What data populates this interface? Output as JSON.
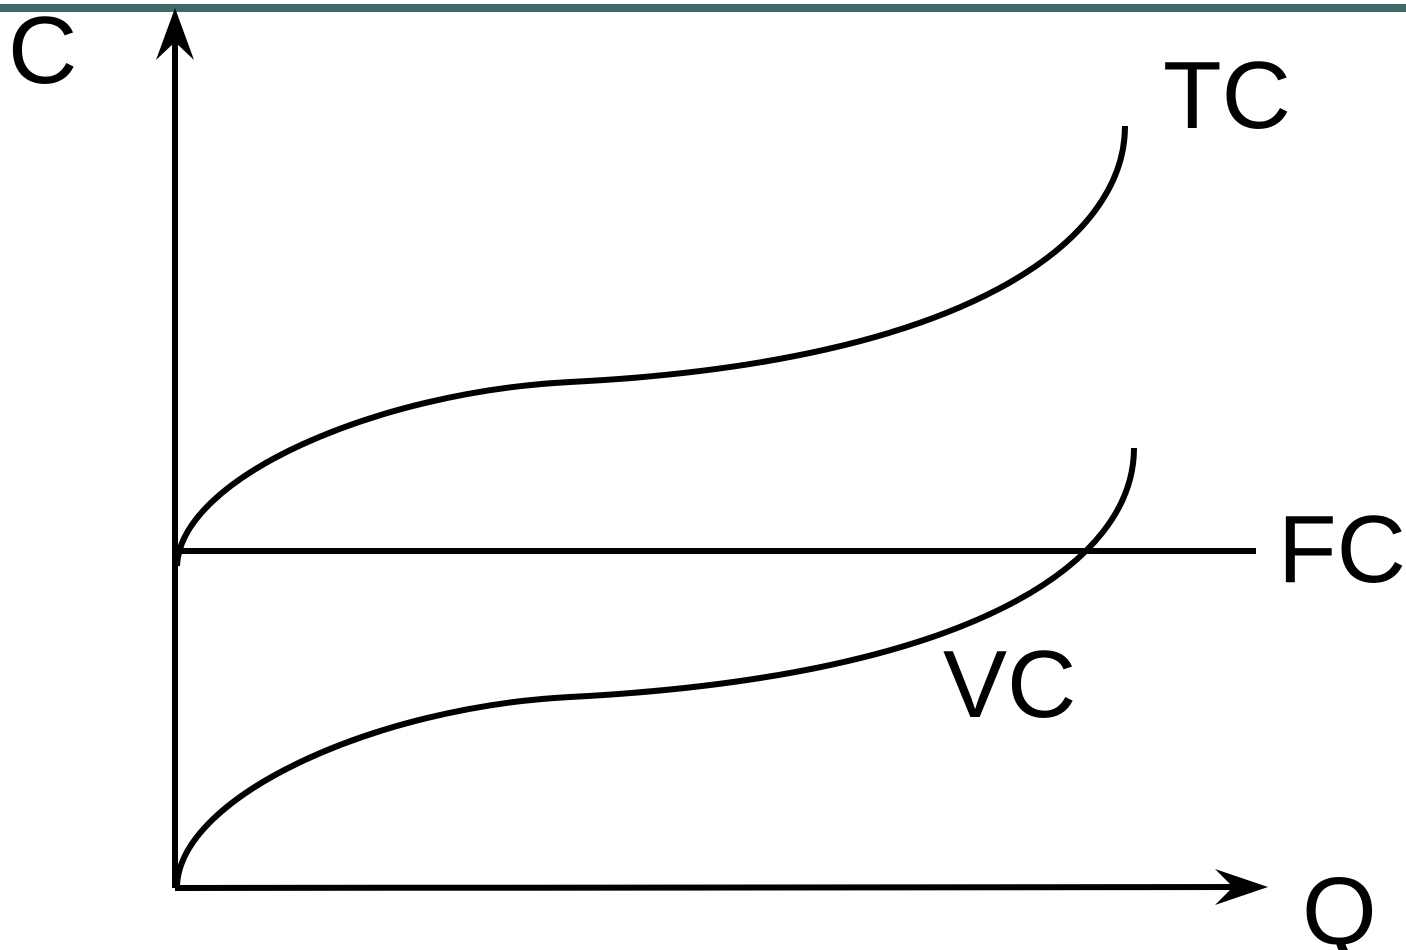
{
  "colors": {
    "top_bar": "#3d6b69",
    "line": "#000000",
    "background": "#ffffff"
  },
  "axes": {
    "y_label": "C",
    "x_label": "Q"
  },
  "curves": {
    "tc_label": "TC",
    "fc_label": "FC",
    "vc_label": "VC"
  }
}
